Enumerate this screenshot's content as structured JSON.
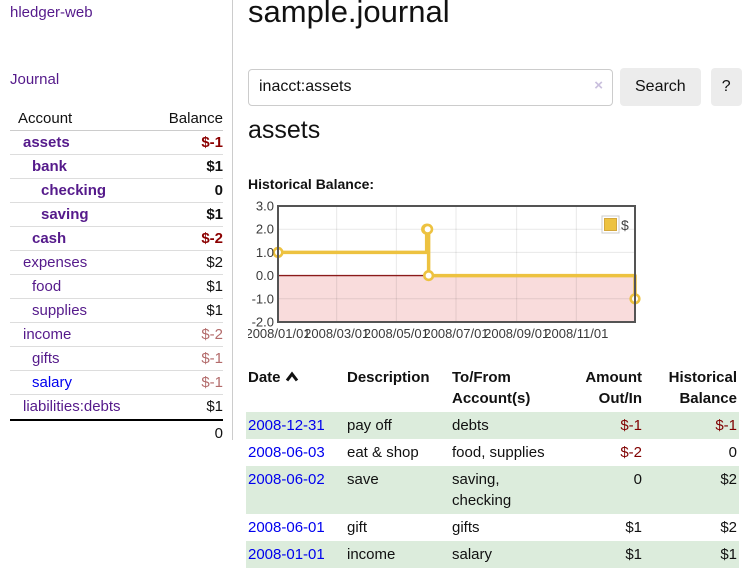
{
  "header": {
    "app_title": "hledger-web"
  },
  "sidebar": {
    "journal_label": "Journal",
    "accounts": {
      "col_account": "Account",
      "col_balance": "Balance",
      "rows": [
        {
          "name": "assets",
          "depth": 1,
          "bold": true,
          "balance": "$-1",
          "neg": "strong",
          "link": "purple"
        },
        {
          "name": "bank",
          "depth": 2,
          "bold": true,
          "balance": "$1",
          "neg": "none",
          "link": "purple"
        },
        {
          "name": "checking",
          "depth": 3,
          "bold": true,
          "balance": "0",
          "neg": "none",
          "link": "purple"
        },
        {
          "name": "saving",
          "depth": 3,
          "bold": true,
          "balance": "$1",
          "neg": "none",
          "link": "purple"
        },
        {
          "name": "cash",
          "depth": 2,
          "bold": true,
          "balance": "$-2",
          "neg": "strong",
          "link": "purple"
        },
        {
          "name": "expenses",
          "depth": 1,
          "bold": false,
          "balance": "$2",
          "neg": "none",
          "link": "purple"
        },
        {
          "name": "food",
          "depth": 2,
          "bold": false,
          "balance": "$1",
          "neg": "none",
          "link": "purple"
        },
        {
          "name": "supplies",
          "depth": 2,
          "bold": false,
          "balance": "$1",
          "neg": "none",
          "link": "purple"
        },
        {
          "name": "income",
          "depth": 1,
          "bold": false,
          "balance": "$-2",
          "neg": "soft",
          "link": "purple"
        },
        {
          "name": "gifts",
          "depth": 2,
          "bold": false,
          "balance": "$-1",
          "neg": "soft",
          "link": "purple"
        },
        {
          "name": "salary",
          "depth": 2,
          "bold": false,
          "balance": "$-1",
          "neg": "soft",
          "link": "blue"
        },
        {
          "name": "liabilities:debts",
          "depth": 1,
          "bold": false,
          "balance": "$1",
          "neg": "none",
          "link": "purple"
        }
      ],
      "total": "0"
    }
  },
  "main": {
    "title": "sample.journal",
    "search": {
      "value": "inacct:assets",
      "clear_icon": "×",
      "button_label": "Search",
      "help_label": "?"
    },
    "account_heading": "assets",
    "chart_label": "Historical Balance:"
  },
  "chart_data": {
    "type": "line",
    "step": true,
    "title": "Historical Balance",
    "legend_label": "$",
    "series_color": "#edc240",
    "negative_region_color": "#f9dcdc",
    "zero_line_color": "#8b1a1a",
    "border_color": "#545454",
    "ylim": [
      -2,
      3
    ],
    "x_span_days": 365,
    "y_ticks": [
      {
        "label": "3.0",
        "value": 3
      },
      {
        "label": "2.0",
        "value": 2
      },
      {
        "label": "1.0",
        "value": 1
      },
      {
        "label": "0.0",
        "value": 0
      },
      {
        "label": "-1.0",
        "value": -1
      },
      {
        "label": "-2.0",
        "value": -2
      }
    ],
    "x_ticks": [
      {
        "label": "2008/01/01",
        "day": 0
      },
      {
        "label": "2008/03/01",
        "day": 60
      },
      {
        "label": "2008/05/01",
        "day": 121
      },
      {
        "label": "2008/07/01",
        "day": 182
      },
      {
        "label": "2008/09/01",
        "day": 244
      },
      {
        "label": "2008/11/01",
        "day": 305
      }
    ],
    "points": [
      {
        "date": "2008-01-01",
        "day": 0,
        "value": 1
      },
      {
        "date": "2008-06-01",
        "day": 152,
        "value": 2
      },
      {
        "date": "2008-06-02",
        "day": 153,
        "value": 2
      },
      {
        "date": "2008-06-03",
        "day": 154,
        "value": 0
      },
      {
        "date": "2008-12-31",
        "day": 365,
        "value": -1
      }
    ]
  },
  "register": {
    "columns": [
      {
        "label": "Date",
        "align": "left",
        "sorted": "asc"
      },
      {
        "label": "Description",
        "align": "left"
      },
      {
        "label": "To/From Account(s)",
        "align": "left"
      },
      {
        "label": "Amount Out/In",
        "align": "right"
      },
      {
        "label": "Historical Balance",
        "align": "right"
      }
    ],
    "rows": [
      {
        "date": "2008-12-31",
        "description": "pay off",
        "accounts": "debts",
        "amount": "$-1",
        "amount_neg": true,
        "balance": "$-1",
        "balance_neg": true,
        "shaded": true
      },
      {
        "date": "2008-06-03",
        "description": "eat & shop",
        "accounts": "food, supplies",
        "amount": "$-2",
        "amount_neg": true,
        "balance": "0",
        "balance_neg": false,
        "shaded": false
      },
      {
        "date": "2008-06-02",
        "description": "save",
        "accounts": "saving, checking",
        "amount": "0",
        "amount_neg": false,
        "balance": "$2",
        "balance_neg": false,
        "shaded": true
      },
      {
        "date": "2008-06-01",
        "description": "gift",
        "accounts": "gifts",
        "amount": "$1",
        "amount_neg": false,
        "balance": "$2",
        "balance_neg": false,
        "shaded": false
      },
      {
        "date": "2008-01-01",
        "description": "income",
        "accounts": "salary",
        "amount": "$1",
        "amount_neg": false,
        "balance": "$1",
        "balance_neg": false,
        "shaded": true
      }
    ]
  },
  "colors": {
    "link_purple": "#551a8b",
    "link_blue": "#0000ee",
    "negative_strong": "#8b0000",
    "negative_soft": "#b36b6b",
    "table_negative": "#800000",
    "row_stripe_green": "#dcecdc",
    "series_gold": "#edc240",
    "negative_region_pink": "#f9dcdc",
    "zero_line_red": "#8b1a1a",
    "chart_border_gray": "#545454",
    "button_gray": "#ececec"
  }
}
